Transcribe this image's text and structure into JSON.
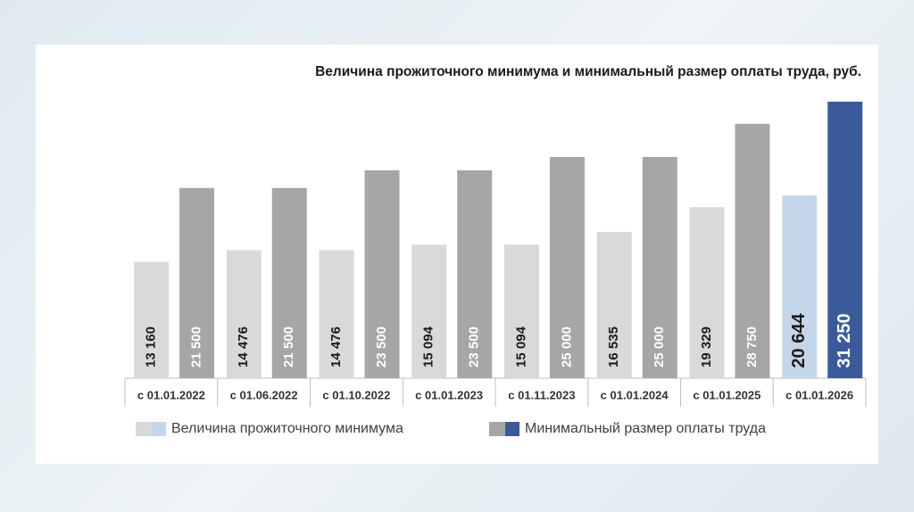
{
  "chart_data": {
    "type": "bar",
    "title": "Величина прожиточного минимума и минимальный размер оплаты труда, руб.",
    "categories": [
      "с 01.01.2022",
      "с 01.06.2022",
      "с 01.10.2022",
      "с 01.01.2023",
      "с 01.11.2023",
      "с 01.01.2024",
      "с 01.01.2025",
      "с 01.01.2026"
    ],
    "series": [
      {
        "name": "Величина прожиточного минимума",
        "color": "#d9d9d9",
        "colors": [
          "#d9d9d9",
          "#d9d9d9",
          "#d9d9d9",
          "#d9d9d9",
          "#d9d9d9",
          "#d9d9d9",
          "#d9d9d9",
          "#c6d6ea"
        ],
        "values": [
          13160,
          14476,
          14476,
          15094,
          15094,
          16535,
          19329,
          20644
        ],
        "value_labels": [
          "13 160",
          "14 476",
          "14 476",
          "15 094",
          "15 094",
          "16 535",
          "19 329",
          "20 644"
        ]
      },
      {
        "name": "Минимальный размер оплаты труда",
        "color": "#a6a6a6",
        "colors": [
          "#a6a6a6",
          "#a6a6a6",
          "#a6a6a6",
          "#a6a6a6",
          "#a6a6a6",
          "#a6a6a6",
          "#a6a6a6",
          "#3b5a9a"
        ],
        "values": [
          21500,
          21500,
          23500,
          23500,
          25000,
          25000,
          28750,
          31250
        ],
        "value_labels": [
          "21 500",
          "21 500",
          "23 500",
          "23 500",
          "25 000",
          "25 000",
          "28 750",
          "31 250"
        ]
      }
    ]
  }
}
